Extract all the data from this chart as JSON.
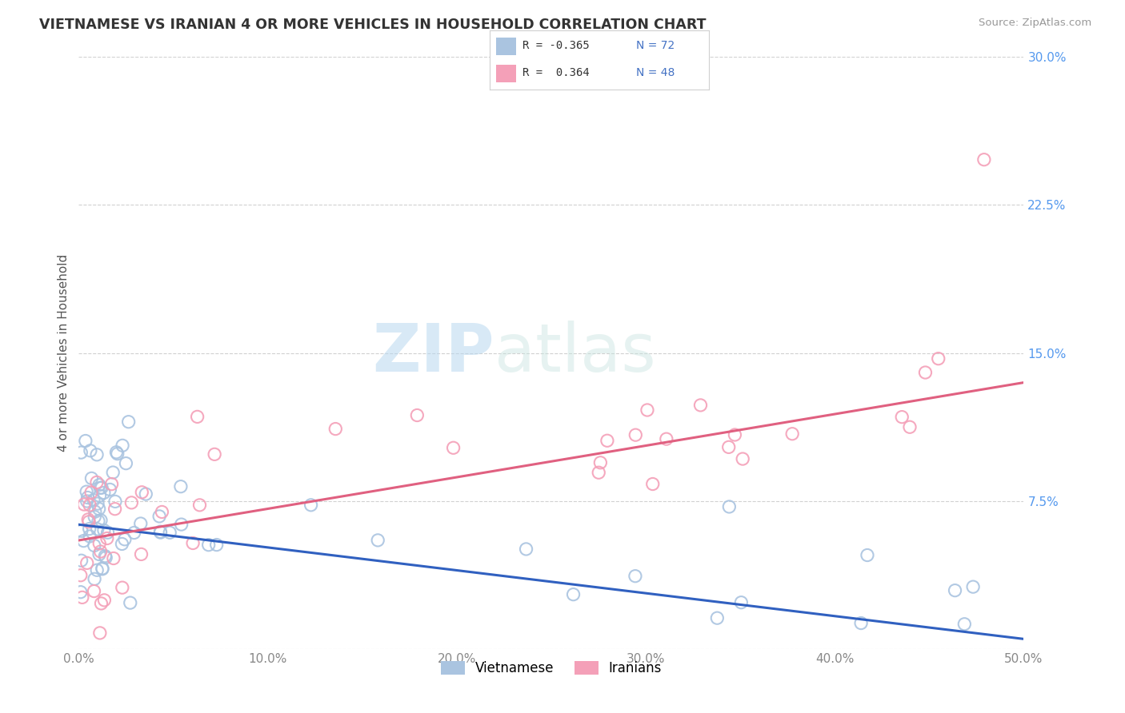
{
  "title": "VIETNAMESE VS IRANIAN 4 OR MORE VEHICLES IN HOUSEHOLD CORRELATION CHART",
  "source": "Source: ZipAtlas.com",
  "ylabel": "4 or more Vehicles in Household",
  "xlim": [
    0.0,
    0.5
  ],
  "ylim": [
    0.0,
    0.3
  ],
  "xticks": [
    0.0,
    0.1,
    0.2,
    0.3,
    0.4,
    0.5
  ],
  "xticklabels": [
    "0.0%",
    "10.0%",
    "20.0%",
    "30.0%",
    "40.0%",
    "50.0%"
  ],
  "yticks": [
    0.0,
    0.075,
    0.15,
    0.225,
    0.3
  ],
  "yticklabels": [
    "",
    "7.5%",
    "15.0%",
    "22.5%",
    "30.0%"
  ],
  "viet_color": "#aac4e0",
  "iran_color": "#f4a0b8",
  "viet_line_color": "#3060c0",
  "iran_line_color": "#e06080",
  "background_color": "#ffffff",
  "grid_color": "#cccccc",
  "viet_r": -0.365,
  "iran_r": 0.364,
  "viet_n": 72,
  "iran_n": 48,
  "watermark_zip": "ZIP",
  "watermark_atlas": "atlas",
  "title_color": "#333333",
  "source_color": "#999999",
  "ylabel_color": "#555555",
  "ytick_color": "#5599ee",
  "xtick_color": "#888888",
  "legend_r_color": "#333333",
  "legend_n_color": "#4472c4",
  "marker_size": 120
}
